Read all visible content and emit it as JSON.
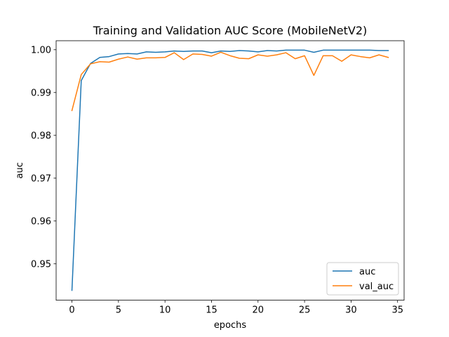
{
  "chart_data": {
    "type": "line",
    "title": "Training and Validation AUC Score (MobileNetV2)",
    "xlabel": "epochs",
    "ylabel": "auc",
    "xlim": [
      -1.7,
      35.7
    ],
    "ylim": [
      0.9415,
      1.0021
    ],
    "xticks": [
      0,
      5,
      10,
      15,
      20,
      25,
      30,
      35
    ],
    "yticks": [
      0.95,
      0.96,
      0.97,
      0.98,
      0.99,
      1.0
    ],
    "ytick_labels": [
      "0.95",
      "0.96",
      "0.97",
      "0.98",
      "0.99",
      "1.00"
    ],
    "grid": false,
    "legend_position": "lower-right",
    "series": [
      {
        "name": "auc",
        "color": "#1f77b4",
        "x": [
          0,
          1,
          2,
          3,
          4,
          5,
          6,
          7,
          8,
          9,
          10,
          11,
          12,
          13,
          14,
          15,
          16,
          17,
          18,
          19,
          20,
          21,
          22,
          23,
          24,
          25,
          26,
          27,
          28,
          29,
          30,
          31,
          32,
          33,
          34
        ],
        "values": [
          0.9438,
          0.9928,
          0.9968,
          0.9982,
          0.9984,
          0.999,
          0.9991,
          0.999,
          0.9995,
          0.9994,
          0.9995,
          0.9997,
          0.9996,
          0.9997,
          0.9997,
          0.9993,
          0.9997,
          0.9996,
          0.9998,
          0.9997,
          0.9995,
          0.9998,
          0.9997,
          0.9999,
          0.9999,
          0.9999,
          0.9994,
          0.9999,
          0.9999,
          0.9999,
          0.9999,
          0.9999,
          0.9999,
          0.9998,
          0.9998
        ]
      },
      {
        "name": "val_auc",
        "color": "#ff7f0e",
        "x": [
          0,
          1,
          2,
          3,
          4,
          5,
          6,
          7,
          8,
          9,
          10,
          11,
          12,
          13,
          14,
          15,
          16,
          17,
          18,
          19,
          20,
          21,
          22,
          23,
          24,
          25,
          26,
          27,
          28,
          29,
          30,
          31,
          32,
          33,
          34
        ],
        "values": [
          0.9858,
          0.9942,
          0.9967,
          0.9972,
          0.9971,
          0.9978,
          0.9983,
          0.9978,
          0.9981,
          0.9981,
          0.9982,
          0.9993,
          0.9977,
          0.999,
          0.9989,
          0.9985,
          0.9994,
          0.9986,
          0.998,
          0.9979,
          0.9988,
          0.9985,
          0.9988,
          0.9993,
          0.9979,
          0.9986,
          0.994,
          0.9986,
          0.9986,
          0.9973,
          0.9988,
          0.9984,
          0.9981,
          0.9988,
          0.9982
        ]
      }
    ]
  }
}
